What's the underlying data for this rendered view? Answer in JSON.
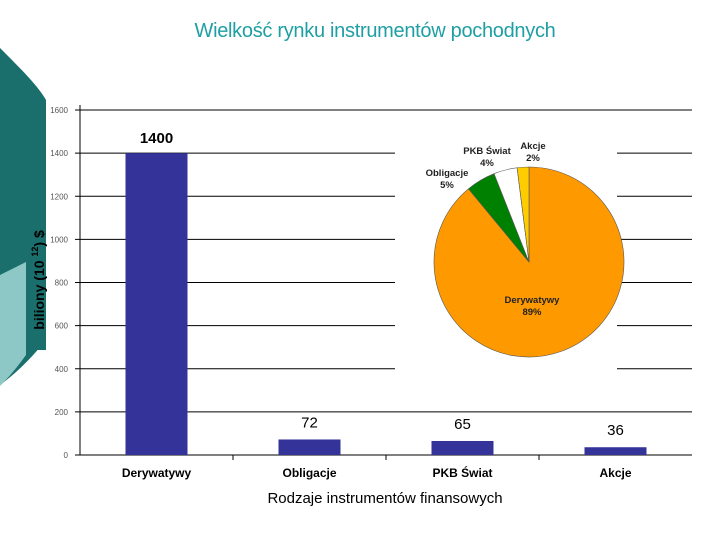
{
  "title": "Wielkość rynku instrumentów pochodnych",
  "colors": {
    "title": "#1f9fa3",
    "bar": "#333399",
    "deco_dark": "#1a6f6d",
    "deco_light": "#8ec8c6",
    "pie_orange": "#ff9900",
    "pie_green": "#008000",
    "pie_white": "#ffffff",
    "pie_yellow": "#ffcc00"
  },
  "chart_data": [
    {
      "type": "bar",
      "title": "",
      "xlabel": "Rodzaje instrumentów finansowych",
      "ylabel": "biliony (10 12) $",
      "ylabel_parts": {
        "main": "biliony (10 ",
        "exponent": "12",
        "tail": ") $"
      },
      "categories": [
        "Derywatywy",
        "Obligacje",
        "PKB Świat",
        "Akcje"
      ],
      "values": [
        1400,
        72,
        65,
        36
      ],
      "data_labels": [
        "1400",
        "72",
        "65",
        "36"
      ],
      "ylim": [
        0,
        1600
      ],
      "yticks": [
        0,
        200,
        400,
        600,
        800,
        1000,
        1200,
        1400,
        1600
      ],
      "ytick_labels": [
        "0",
        "200",
        "400",
        "600",
        "800",
        "1000",
        "1200",
        "1400",
        "1600"
      ],
      "grid": true
    },
    {
      "type": "pie",
      "title": "",
      "slices": [
        {
          "label": "Derywatywy",
          "percent": 89,
          "value_label": "89%",
          "color": "#ff9900"
        },
        {
          "label": "Obligacje",
          "percent": 5,
          "value_label": "5%",
          "color": "#008000"
        },
        {
          "label": "PKB Świat",
          "percent": 4,
          "value_label": "4%",
          "color": "#ffffff"
        },
        {
          "label": "Akcje",
          "percent": 2,
          "value_label": "2%",
          "color": "#ffcc00"
        }
      ]
    }
  ]
}
